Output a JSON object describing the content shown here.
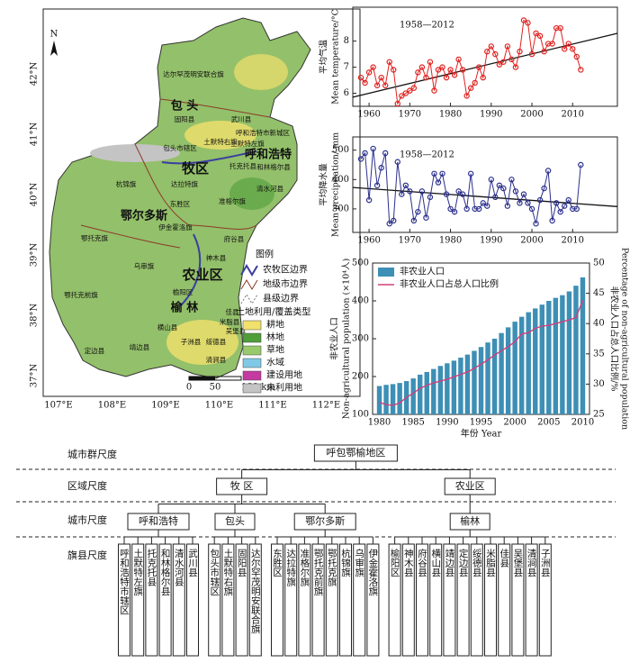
{
  "chart_data": [
    {
      "type": "line",
      "annotation": "1958—2012",
      "ylabel": [
        "平均气温",
        "Mean temperature/°C"
      ],
      "x": [
        1958,
        1959,
        1960,
        1961,
        1962,
        1963,
        1964,
        1965,
        1966,
        1967,
        1968,
        1969,
        1970,
        1971,
        1972,
        1973,
        1974,
        1975,
        1976,
        1977,
        1978,
        1979,
        1980,
        1981,
        1982,
        1983,
        1984,
        1985,
        1986,
        1987,
        1988,
        1989,
        1990,
        1991,
        1992,
        1993,
        1994,
        1995,
        1996,
        1997,
        1998,
        1999,
        2000,
        2001,
        2002,
        2003,
        2004,
        2005,
        2006,
        2007,
        2008,
        2009,
        2010,
        2011,
        2012
      ],
      "series": [
        {
          "color": "#e0201e",
          "values": [
            6.6,
            6.4,
            6.8,
            7.0,
            6.3,
            6.6,
            6.3,
            7.2,
            6.9,
            5.6,
            5.9,
            6.0,
            6.1,
            6.2,
            6.8,
            7.0,
            6.6,
            7.2,
            6.1,
            6.9,
            7.0,
            6.6,
            6.9,
            6.7,
            7.3,
            6.9,
            5.9,
            6.2,
            6.4,
            7.0,
            6.6,
            7.6,
            7.8,
            7.5,
            7.1,
            7.2,
            7.8,
            7.3,
            7.0,
            7.6,
            8.8,
            8.7,
            7.5,
            8.3,
            8.2,
            7.6,
            7.9,
            7.9,
            8.5,
            8.5,
            7.7,
            7.9,
            7.7,
            7.4,
            6.9
          ]
        }
      ],
      "trend": {
        "x": [
          1956,
          2021
        ],
        "values": [
          5.85,
          8.3
        ]
      },
      "xlim": [
        1956,
        2021
      ],
      "ylim": [
        5.5,
        9.3
      ],
      "xticks": [
        1960,
        1970,
        1980,
        1990,
        2000,
        2010
      ],
      "yticks": [
        6,
        7,
        8
      ]
    },
    {
      "type": "line",
      "annotation": "1958—2012",
      "ylabel": [
        "平均降水量",
        "Mean precipitation/ mm"
      ],
      "x": [
        1958,
        1959,
        1960,
        1961,
        1962,
        1963,
        1964,
        1965,
        1966,
        1967,
        1968,
        1969,
        1970,
        1971,
        1972,
        1973,
        1974,
        1975,
        1976,
        1977,
        1978,
        1979,
        1980,
        1981,
        1982,
        1983,
        1984,
        1985,
        1986,
        1987,
        1988,
        1989,
        1990,
        1991,
        1992,
        1993,
        1994,
        1995,
        1996,
        1997,
        1998,
        1999,
        2000,
        2001,
        2002,
        2003,
        2004,
        2005,
        2006,
        2007,
        2008,
        2009,
        2010,
        2011,
        2012
      ],
      "series": [
        {
          "color": "#2b2f8c",
          "values": [
            470,
            490,
            330,
            505,
            380,
            440,
            490,
            250,
            260,
            460,
            350,
            380,
            360,
            260,
            290,
            360,
            270,
            340,
            420,
            390,
            420,
            350,
            300,
            290,
            360,
            350,
            300,
            420,
            300,
            300,
            320,
            310,
            400,
            340,
            380,
            370,
            310,
            400,
            360,
            320,
            350,
            320,
            300,
            250,
            330,
            370,
            430,
            260,
            320,
            290,
            310,
            330,
            300,
            300,
            450
          ]
        }
      ],
      "trend": {
        "x": [
          1956,
          2021
        ],
        "values": [
          373,
          308
        ]
      },
      "xlim": [
        1956,
        2021
      ],
      "ylim": [
        220,
        545
      ],
      "xticks": [
        1960,
        1970,
        1980,
        1990,
        2000,
        2010
      ],
      "yticks": [
        300,
        400,
        500
      ]
    },
    {
      "type": "bar_line",
      "xlabel": "年份 Year",
      "ylabel": [
        "非农业人口",
        "Non-agricultural population (×10⁴人)"
      ],
      "y2label": [
        "非农业人口占总人口比例/%",
        "Percentage of non-agricultural population"
      ],
      "x": [
        1980,
        1981,
        1982,
        1983,
        1984,
        1985,
        1986,
        1987,
        1988,
        1989,
        1990,
        1991,
        1992,
        1993,
        1994,
        1995,
        1996,
        1997,
        1998,
        1999,
        2000,
        2001,
        2002,
        2003,
        2004,
        2005,
        2006,
        2007,
        2008,
        2009,
        2010
      ],
      "series": [
        {
          "name": "非农业人口",
          "color": "#3d8fb5",
          "values": [
            175,
            178,
            180,
            183,
            188,
            195,
            205,
            212,
            220,
            228,
            235,
            242,
            250,
            258,
            268,
            278,
            290,
            300,
            315,
            330,
            345,
            358,
            370,
            380,
            390,
            400,
            408,
            415,
            425,
            440,
            462
          ]
        },
        {
          "name": "非农业人口占总人口比例",
          "color": "#d0407a",
          "axis": "y2",
          "values": [
            27,
            26.6,
            26.5,
            26.9,
            27.8,
            28.5,
            29.3,
            29.8,
            30.2,
            30.5,
            30.8,
            31.2,
            31.6,
            32.0,
            32.6,
            33.3,
            34.0,
            34.8,
            35.5,
            36.2,
            37.0,
            38.3,
            38.5,
            39.2,
            39.6,
            39.7,
            40.0,
            40.3,
            40.6,
            41.0,
            43.8
          ]
        }
      ],
      "xlim": [
        1979,
        2011
      ],
      "ylim": [
        100,
        500
      ],
      "y2lim": [
        25,
        50
      ],
      "xticks": [
        1980,
        1985,
        1990,
        1995,
        2000,
        2005,
        2010
      ],
      "yticks": [
        100,
        200,
        300,
        400,
        500
      ],
      "y2ticks": [
        25,
        30,
        35,
        40,
        45,
        50
      ]
    }
  ],
  "map": {
    "north": "N",
    "lon_labels": [
      "107°E",
      "108°E",
      "109°E",
      "110°E",
      "111°E",
      "112°E"
    ],
    "lat_labels": [
      "42°N",
      "41°N",
      "40°N",
      "39°N",
      "38°N",
      "37°N"
    ],
    "scale_labels": [
      "0",
      "50",
      "100 km"
    ],
    "city_labels": [
      "包 头",
      "呼和浩特",
      "鄂尔多斯",
      "榆 林"
    ],
    "zone_labels": [
      "牧区",
      "农业区"
    ],
    "place_labels": [
      "达尔罕茂明安联合旗",
      "固阳县",
      "武川县",
      "呼和浩特市新城区",
      "包头市辖区",
      "土默特右旗",
      "土默特左旗",
      "托克托县",
      "和林格尔县",
      "清水河县",
      "杭锦旗",
      "达拉特旗",
      "东胜区",
      "准格尔旗",
      "伊金霍洛旗",
      "府谷县",
      "鄂托克旗",
      "神木县",
      "乌审旗",
      "榆阳区",
      "鄂托克前旗",
      "佳县",
      "米脂县",
      "吴堡县",
      "横山县",
      "绥德县",
      "子洲县",
      "清涧县",
      "定边县",
      "靖边县"
    ],
    "legend": {
      "title": "图例",
      "boundaries": [
        "农牧区边界",
        "地级市边界",
        "县级边界"
      ],
      "landcover_title": "土地利用/覆盖类型",
      "landcover": [
        {
          "name": "耕地",
          "color": "#f1e06c"
        },
        {
          "name": "林地",
          "color": "#4f9e3a"
        },
        {
          "name": "草地",
          "color": "#98c96a"
        },
        {
          "name": "水域",
          "color": "#7fc9e6"
        },
        {
          "name": "建设用地",
          "color": "#c43aa0"
        },
        {
          "name": "未利用地",
          "color": "#c4c4c4"
        }
      ]
    }
  },
  "hierarchy": {
    "levels": [
      "城市群尺度",
      "区域尺度",
      "城市尺度",
      "旗县尺度"
    ],
    "root": "呼包鄂榆地区",
    "regions": [
      {
        "name": "牧 区",
        "cities": [
          {
            "name": "呼和浩特",
            "counties": [
              "呼和浩特市辖区",
              "土默特左旗",
              "托克托县",
              "和林格尔县",
              "清水河县",
              "武川县"
            ]
          },
          {
            "name": "包头",
            "counties": [
              "包头市辖区",
              "土默特右旗",
              "固阳县",
              "达尔罕茂明安联合旗"
            ]
          },
          {
            "name": "鄂尔多斯",
            "counties": [
              "东胜区",
              "达拉特旗",
              "准格尔旗",
              "鄂托克前旗",
              "鄂托克旗",
              "杭锦旗",
              "乌审旗",
              "伊金霍洛旗"
            ]
          }
        ]
      },
      {
        "name": "农业区",
        "cities": [
          {
            "name": "榆林",
            "counties": [
              "榆阳区",
              "神木县",
              "府谷县",
              "横山县",
              "靖边县",
              "定边县",
              "绥德县",
              "米脂县",
              "佳县",
              "吴堡县",
              "清涧县",
              "子洲县"
            ]
          }
        ]
      }
    ]
  }
}
